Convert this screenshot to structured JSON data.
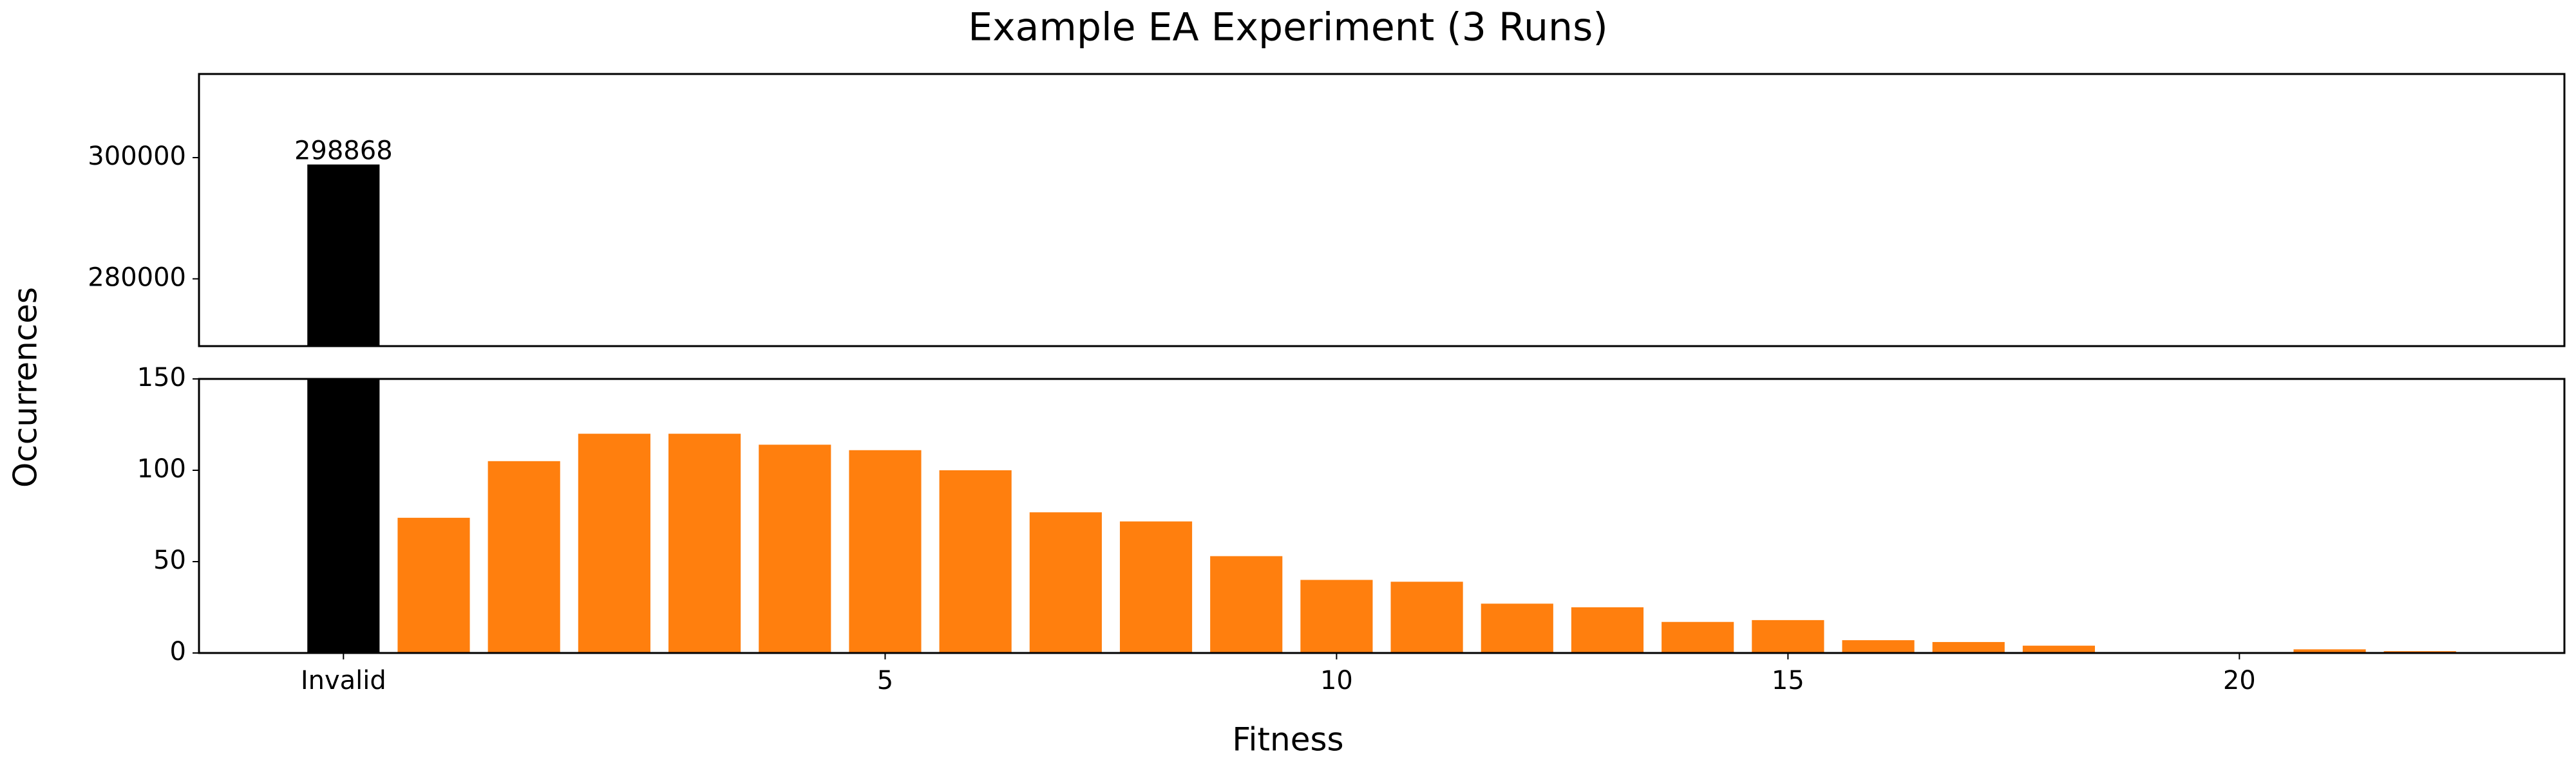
{
  "chart_data": {
    "type": "bar",
    "title": "Example EA Experiment (3 Runs)",
    "xlabel": "Fitness",
    "ylabel": "Occurrences",
    "x": [
      -1,
      0,
      1,
      2,
      3,
      4,
      5,
      6,
      7,
      8,
      9,
      10,
      11,
      12,
      13,
      14,
      15,
      16,
      17,
      18,
      19,
      20,
      21,
      22
    ],
    "values": [
      298868,
      74,
      105,
      120,
      120,
      114,
      111,
      100,
      77,
      72,
      53,
      40,
      39,
      27,
      25,
      17,
      18,
      7,
      6,
      4,
      0,
      0,
      2,
      1
    ],
    "colors": [
      "#000000",
      "#ff7f0e",
      "#ff7f0e",
      "#ff7f0e",
      "#ff7f0e",
      "#ff7f0e",
      "#ff7f0e",
      "#ff7f0e",
      "#ff7f0e",
      "#ff7f0e",
      "#ff7f0e",
      "#ff7f0e",
      "#ff7f0e",
      "#ff7f0e",
      "#ff7f0e",
      "#ff7f0e",
      "#ff7f0e",
      "#ff7f0e",
      "#ff7f0e",
      "#ff7f0e",
      "#ff7f0e",
      "#ff7f0e",
      "#ff7f0e",
      "#ff7f0e"
    ],
    "labeled_bars": [
      0
    ],
    "xlim": [
      -2.6,
      23.6
    ],
    "xticks": [
      {
        "value": -1,
        "label": "Invalid"
      },
      5,
      10,
      15,
      20
    ],
    "panels": [
      {
        "ylim": [
          268900,
          313800
        ],
        "yticks": [
          280000,
          300000
        ]
      },
      {
        "ylim": [
          0,
          150
        ],
        "yticks": [
          0,
          50,
          100,
          150
        ]
      }
    ]
  }
}
